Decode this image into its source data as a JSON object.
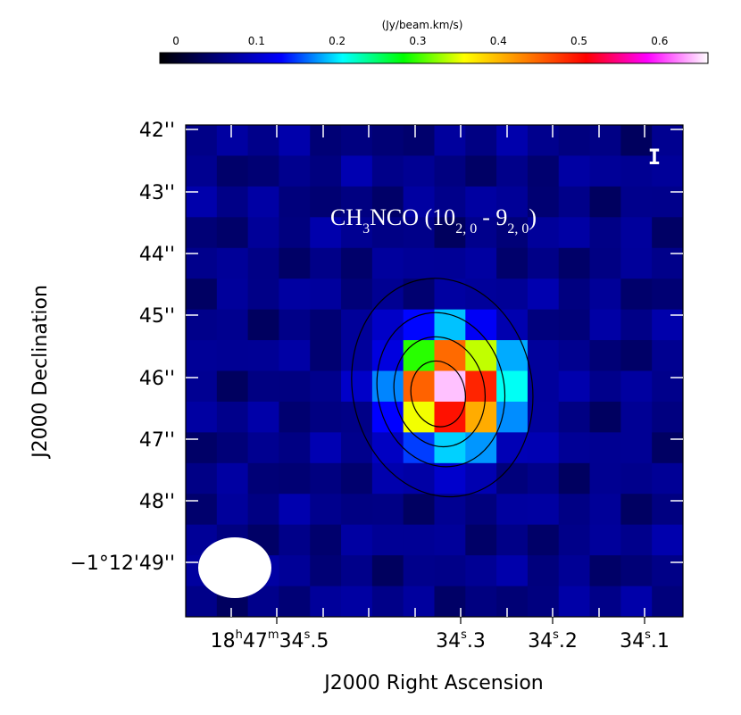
{
  "chart_data": {
    "type": "heatmap",
    "title": "CH3NCO (10 2,0 - 9 2,0)",
    "title_parts": {
      "molecule_prefix": "CH",
      "molecule_sub": "3",
      "molecule_suffix": "NCO (10",
      "upper_sub": "2, 0",
      "separator": "- 9",
      "lower_sub": "2, 0",
      "close": ")"
    },
    "panel_label": "I",
    "colorbar": {
      "label": "(Jy/beam.km/s)",
      "ticks": [
        "0",
        "0.1",
        "0.2",
        "0.3",
        "0.4",
        "0.5",
        "0.6"
      ],
      "range": [
        -0.02,
        0.66
      ],
      "colormap": [
        "#000000",
        "#000080",
        "#0000ff",
        "#00ffff",
        "#00ff00",
        "#ffff00",
        "#ff8000",
        "#ff0000",
        "#ff00ff",
        "#ffffff"
      ]
    },
    "xlabel": "J2000 Right Ascension",
    "ylabel": "J2000 Declination",
    "x_ticks": [
      {
        "h": "18",
        "m": "47",
        "s": "34",
        "frac": ".5",
        "full": true
      },
      {
        "s": "34",
        "frac": ".3",
        "full": false
      },
      {
        "s": "34",
        "frac": ".2",
        "full": false
      },
      {
        "s": "34",
        "frac": ".1",
        "full": false
      }
    ],
    "y_ticks": [
      "42''",
      "43''",
      "44''",
      "45''",
      "46''",
      "47''",
      "48''",
      "−1°12'49''"
    ],
    "grid": {
      "cols": 16,
      "rows": 16,
      "background_level": 0.06,
      "peak": {
        "value": 0.66,
        "col": 8.6,
        "row": 8.6,
        "sigma": 1.15
      }
    },
    "contour_levels": [
      0.14,
      0.28,
      0.42,
      0.56
    ],
    "contour_color": "#000000",
    "beam_color": "#ffffff"
  }
}
